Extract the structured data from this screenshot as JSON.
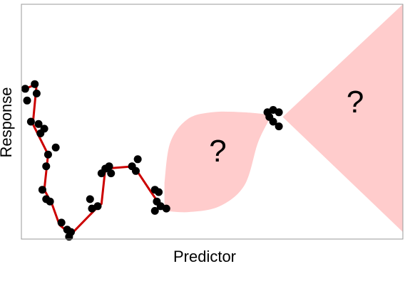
{
  "chart_data": {
    "type": "scatter",
    "title": "",
    "xlabel": "Predictor",
    "ylabel": "Response",
    "xlim": [
      0,
      100
    ],
    "ylim": [
      0,
      100
    ],
    "grid": false,
    "ticks": false,
    "fit_color": "#cc0000",
    "point_color": "#000000",
    "uncertainty_color": "#ffcccc",
    "points": [
      {
        "x": 1,
        "y": 64
      },
      {
        "x": 1.5,
        "y": 59
      },
      {
        "x": 3.5,
        "y": 66
      },
      {
        "x": 4,
        "y": 62
      },
      {
        "x": 2.5,
        "y": 50
      },
      {
        "x": 4.5,
        "y": 49
      },
      {
        "x": 6,
        "y": 47
      },
      {
        "x": 5,
        "y": 45
      },
      {
        "x": 9,
        "y": 39
      },
      {
        "x": 7,
        "y": 36
      },
      {
        "x": 6.5,
        "y": 31
      },
      {
        "x": 5.5,
        "y": 21
      },
      {
        "x": 6.5,
        "y": 17
      },
      {
        "x": 7.5,
        "y": 16
      },
      {
        "x": 10.5,
        "y": 7
      },
      {
        "x": 12,
        "y": 4
      },
      {
        "x": 13,
        "y": 3
      },
      {
        "x": 12.5,
        "y": 1
      },
      {
        "x": 18.5,
        "y": 13
      },
      {
        "x": 18,
        "y": 17
      },
      {
        "x": 20,
        "y": 14
      },
      {
        "x": 21,
        "y": 28
      },
      {
        "x": 22,
        "y": 30
      },
      {
        "x": 23,
        "y": 31
      },
      {
        "x": 23.5,
        "y": 28
      },
      {
        "x": 29,
        "y": 31
      },
      {
        "x": 30.5,
        "y": 34
      },
      {
        "x": 30,
        "y": 29
      },
      {
        "x": 35,
        "y": 21
      },
      {
        "x": 36,
        "y": 20
      },
      {
        "x": 35.5,
        "y": 16
      },
      {
        "x": 36.5,
        "y": 14
      },
      {
        "x": 35,
        "y": 12
      },
      {
        "x": 38,
        "y": 13
      },
      {
        "x": 64.5,
        "y": 54
      },
      {
        "x": 66,
        "y": 55
      },
      {
        "x": 67.5,
        "y": 54
      },
      {
        "x": 65,
        "y": 52
      },
      {
        "x": 66,
        "y": 50
      },
      {
        "x": 67.5,
        "y": 48
      }
    ],
    "fit_line": [
      {
        "x": 1,
        "y": 64
      },
      {
        "x": 4,
        "y": 66
      },
      {
        "x": 3,
        "y": 49
      },
      {
        "x": 7,
        "y": 36
      },
      {
        "x": 6,
        "y": 21
      },
      {
        "x": 8,
        "y": 15
      },
      {
        "x": 10,
        "y": 6
      },
      {
        "x": 13,
        "y": 2
      },
      {
        "x": 19,
        "y": 12
      },
      {
        "x": 21,
        "y": 15
      },
      {
        "x": 22,
        "y": 30
      },
      {
        "x": 29.5,
        "y": 31
      },
      {
        "x": 34,
        "y": 20
      },
      {
        "x": 37,
        "y": 13
      }
    ],
    "uncertainty_regions": [
      {
        "label": "?",
        "x_range": [
          37.5,
          65
        ],
        "lower": [
          {
            "x": 37.5,
            "y": 12
          },
          {
            "x": 44,
            "y": 11.5
          },
          {
            "x": 52,
            "y": 14
          },
          {
            "x": 58.5,
            "y": 23
          },
          {
            "x": 62,
            "y": 41
          },
          {
            "x": 65,
            "y": 51
          }
        ],
        "upper": [
          {
            "x": 37.5,
            "y": 24
          },
          {
            "x": 39,
            "y": 41
          },
          {
            "x": 43.5,
            "y": 51
          },
          {
            "x": 50,
            "y": 54
          },
          {
            "x": 58,
            "y": 54
          },
          {
            "x": 65,
            "y": 53
          }
        ]
      },
      {
        "label": "?",
        "x_range": [
          68.5,
          100
        ],
        "apex": {
          "x": 68.5,
          "y": 52
        },
        "upper_end": {
          "x": 100,
          "y": 100
        },
        "lower_end": {
          "x": 100,
          "y": 3
        }
      }
    ],
    "question_marks": [
      {
        "x": 51.5,
        "y": 33
      },
      {
        "x": 87.5,
        "y": 54
      }
    ]
  }
}
